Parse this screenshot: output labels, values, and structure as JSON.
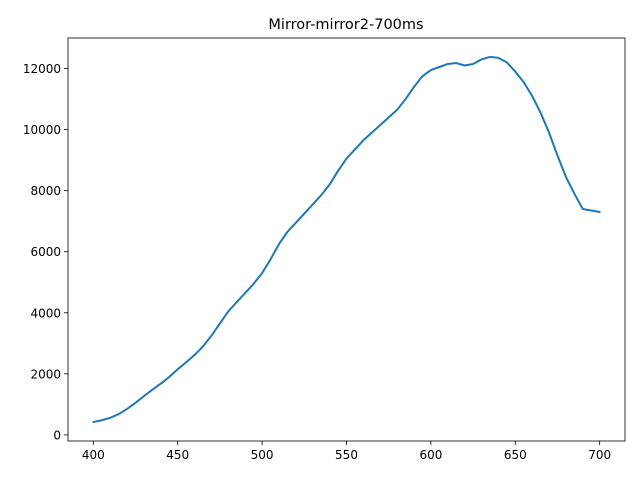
{
  "chart_data": {
    "type": "line",
    "title": "Mirror-mirror2-700ms",
    "xlabel": "",
    "ylabel": "",
    "xlim": [
      385,
      715
    ],
    "ylim": [
      -200,
      13000
    ],
    "xticks": [
      400,
      450,
      500,
      550,
      600,
      650,
      700
    ],
    "yticks": [
      0,
      2000,
      4000,
      6000,
      8000,
      10000,
      12000
    ],
    "grid": false,
    "line_color": "#1f77b4",
    "series": [
      {
        "x": [
          400,
          405,
          410,
          415,
          420,
          425,
          430,
          435,
          440,
          445,
          450,
          455,
          460,
          465,
          470,
          475,
          480,
          485,
          490,
          495,
          500,
          505,
          510,
          515,
          520,
          525,
          530,
          535,
          540,
          545,
          550,
          555,
          560,
          565,
          570,
          575,
          580,
          585,
          590,
          595,
          600,
          605,
          610,
          615,
          620,
          625,
          630,
          635,
          640,
          645,
          650,
          655,
          660,
          665,
          670,
          675,
          680,
          685,
          690,
          695,
          700
        ],
        "values": [
          420,
          480,
          560,
          680,
          850,
          1050,
          1270,
          1480,
          1680,
          1900,
          2150,
          2380,
          2620,
          2900,
          3250,
          3650,
          4050,
          4350,
          4650,
          4950,
          5300,
          5750,
          6250,
          6650,
          6950,
          7250,
          7550,
          7850,
          8200,
          8650,
          9050,
          9350,
          9650,
          9900,
          10150,
          10400,
          10650,
          11000,
          11400,
          11750,
          11950,
          12050,
          12150,
          12180,
          12100,
          12150,
          12300,
          12380,
          12350,
          12200,
          11900,
          11550,
          11100,
          10550,
          9900,
          9150,
          8450,
          7900,
          7400,
          7350,
          7300
        ]
      }
    ]
  }
}
